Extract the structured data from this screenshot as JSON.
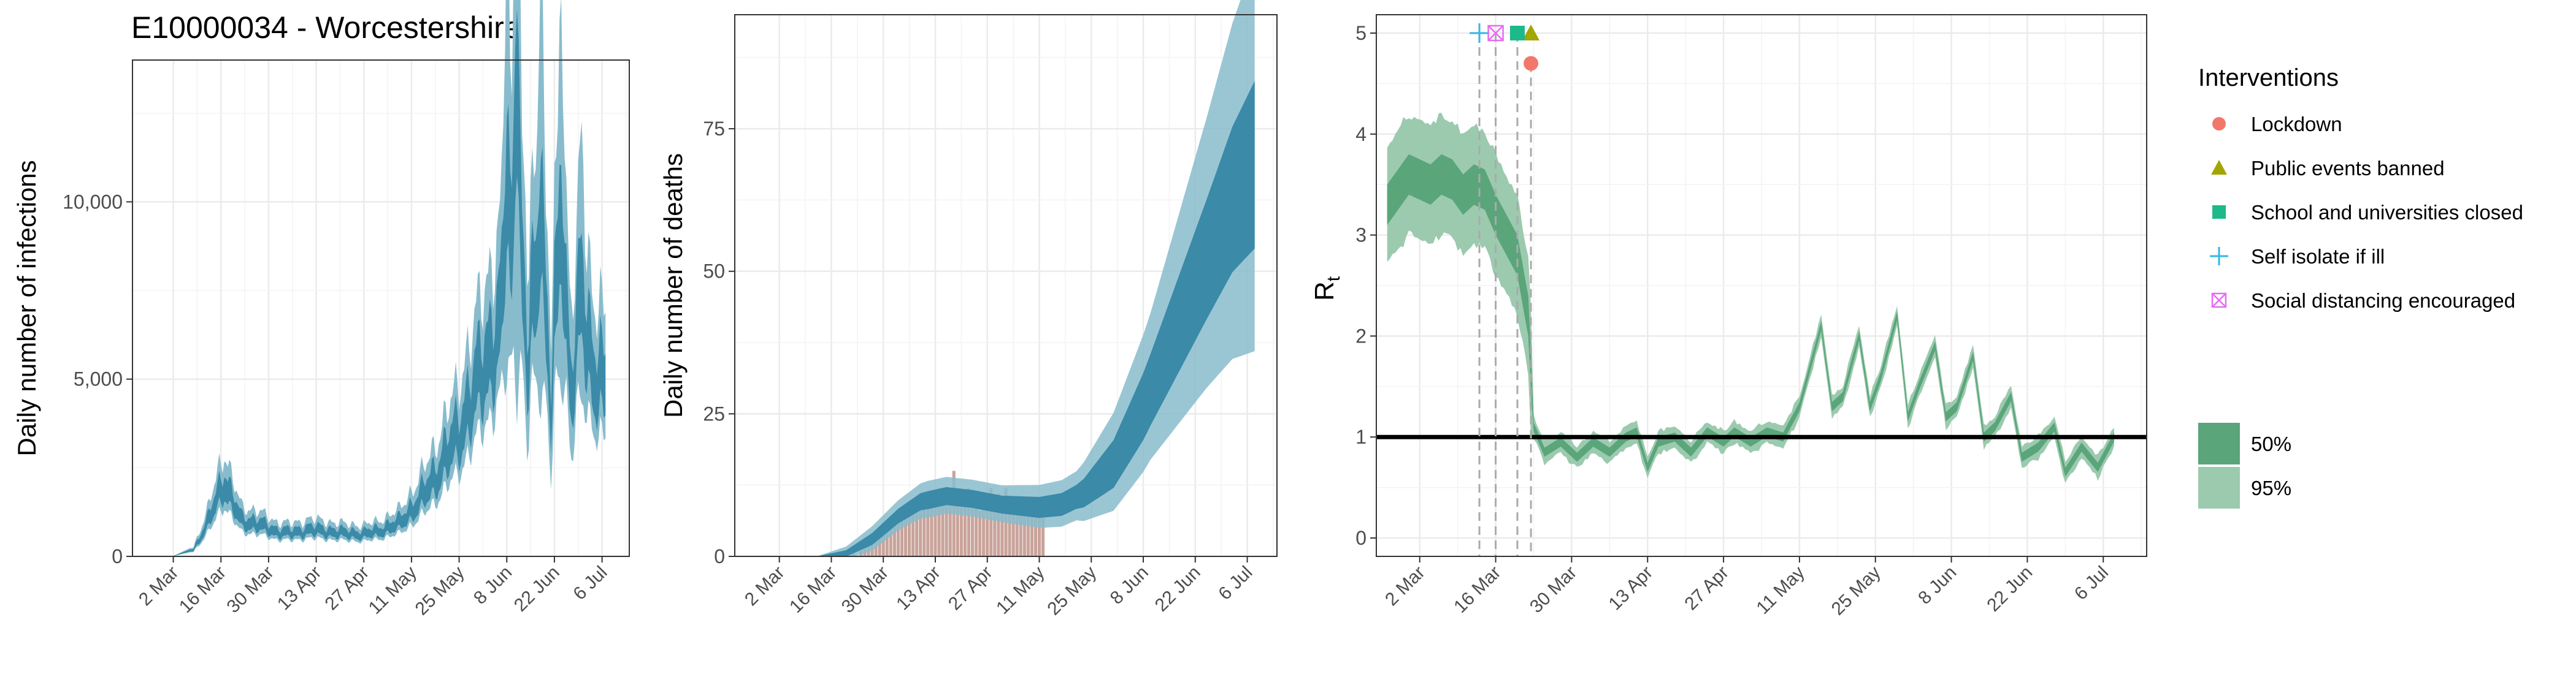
{
  "title": "E10000034 - Worcestershire",
  "colors": {
    "infections_50": "#3a8aa8",
    "infections_95": "#88bccd",
    "deaths_bar": "#c9a39a",
    "rt_50": "#5aa57a",
    "rt_95": "#9ccaaf",
    "lockdown": "#f2776b",
    "public_events": "#a3a500",
    "school": "#1cb98a",
    "self_isolate": "#35b6e6",
    "social_distancing": "#e76bf3",
    "grid": "#ebebeb"
  },
  "chart_data": [
    {
      "id": "infections",
      "type": "area",
      "ylabel": "Daily number of infections",
      "xlabel": "",
      "x_tick_labels": [
        "2 Mar",
        "16 Mar",
        "30 Mar",
        "13 Apr",
        "27 Apr",
        "11 May",
        "25 May",
        "8 Jun",
        "22 Jun",
        "6 Jul"
      ],
      "x_tick_days": [
        10,
        24,
        38,
        52,
        66,
        80,
        94,
        108,
        122,
        136
      ],
      "xlim": [
        -2,
        144
      ],
      "ylim": [
        0,
        14000
      ],
      "y_ticks": [
        0,
        5000,
        10000
      ],
      "y_tick_labels": [
        "0",
        "5,000",
        "10,000"
      ],
      "series": [
        {
          "name": "95%",
          "knots": [
            [
              0,
              0
            ],
            [
              10,
              10
            ],
            [
              16,
              200
            ],
            [
              20,
              900
            ],
            [
              23,
              1700
            ],
            [
              25,
              2100
            ],
            [
              27,
              1600
            ],
            [
              30,
              1000
            ],
            [
              35,
              900
            ],
            [
              40,
              700
            ],
            [
              45,
              650
            ],
            [
              50,
              750
            ],
            [
              55,
              700
            ],
            [
              60,
              650
            ],
            [
              66,
              620
            ],
            [
              70,
              700
            ],
            [
              76,
              900
            ],
            [
              82,
              1500
            ],
            [
              88,
              2400
            ],
            [
              94,
              3500
            ],
            [
              100,
              5000
            ],
            [
              106,
              6500
            ],
            [
              110,
              8000
            ],
            [
              114,
              7500
            ],
            [
              118,
              6500
            ],
            [
              122,
              7000
            ],
            [
              126,
              6500
            ],
            [
              130,
              6000
            ],
            [
              134,
              5200
            ],
            [
              137,
              5000
            ]
          ],
          "spread95": 0.42,
          "spread50": 0.18,
          "spikes": [
            [
              108,
              0.9
            ],
            [
              111,
              1.6
            ],
            [
              114,
              -0.5
            ],
            [
              118,
              1.1
            ],
            [
              121,
              -0.6
            ],
            [
              124,
              0.8
            ],
            [
              127,
              -0.4
            ],
            [
              130,
              0.5
            ]
          ]
        }
      ]
    },
    {
      "id": "deaths",
      "type": "area",
      "ylabel": "Daily number of deaths",
      "xlabel": "",
      "x_tick_labels": [
        "2 Mar",
        "16 Mar",
        "30 Mar",
        "13 Apr",
        "27 Apr",
        "11 May",
        "25 May",
        "8 Jun",
        "22 Jun",
        "6 Jul"
      ],
      "x_tick_days": [
        10,
        24,
        38,
        52,
        66,
        80,
        94,
        108,
        122,
        136
      ],
      "xlim": [
        -2,
        144
      ],
      "ylim": [
        0,
        95
      ],
      "y_ticks": [
        0,
        25,
        50,
        75
      ],
      "y_tick_labels": [
        "0",
        "25",
        "50",
        "75"
      ],
      "series_50_knots": [
        [
          20,
          0
        ],
        [
          28,
          0.5
        ],
        [
          35,
          3
        ],
        [
          42,
          7
        ],
        [
          48,
          9.5
        ],
        [
          55,
          10.5
        ],
        [
          62,
          10
        ],
        [
          70,
          9
        ],
        [
          80,
          8.5
        ],
        [
          86,
          9
        ],
        [
          92,
          11
        ],
        [
          100,
          16
        ],
        [
          108,
          26
        ],
        [
          116,
          38
        ],
        [
          124,
          50
        ],
        [
          132,
          62
        ],
        [
          138,
          68
        ]
      ],
      "series_50_width": [
        [
          20,
          0
        ],
        [
          35,
          1
        ],
        [
          50,
          1.5
        ],
        [
          70,
          1.5
        ],
        [
          90,
          2
        ],
        [
          110,
          6
        ],
        [
          125,
          10
        ],
        [
          138,
          14
        ]
      ],
      "series_95_width": [
        [
          20,
          0
        ],
        [
          35,
          2
        ],
        [
          50,
          3
        ],
        [
          70,
          3
        ],
        [
          90,
          4
        ],
        [
          110,
          12
        ],
        [
          125,
          22
        ],
        [
          138,
          32
        ]
      ],
      "bars_days": [
        30,
        32,
        33,
        34,
        35,
        36,
        37,
        38,
        39,
        40,
        41,
        42,
        43,
        44,
        45,
        46,
        47,
        48,
        49,
        50,
        51,
        52,
        53,
        54,
        55,
        56,
        57,
        58,
        59,
        60,
        61,
        62,
        63,
        64,
        65,
        66,
        67,
        68,
        69,
        70,
        71,
        72,
        73,
        74,
        75,
        76,
        77,
        78,
        79,
        80,
        81
      ],
      "bars_values": [
        1,
        1,
        2,
        3,
        2,
        4,
        5,
        5,
        6,
        7,
        7,
        8,
        8,
        9,
        9,
        10,
        9,
        11,
        10,
        9,
        11,
        10,
        12,
        10,
        10,
        9,
        15,
        10,
        11,
        10,
        12,
        9,
        11,
        8,
        10,
        11,
        12,
        10,
        11,
        9,
        12,
        9,
        10,
        9,
        10,
        9,
        8,
        9,
        9,
        8,
        7
      ]
    },
    {
      "id": "rt",
      "type": "area",
      "ylabel": "R",
      "ylabel_sub": "t",
      "xlabel": "",
      "x_tick_labels": [
        "2 Mar",
        "16 Mar",
        "30 Mar",
        "13 Apr",
        "27 Apr",
        "11 May",
        "25 May",
        "8 Jun",
        "22 Jun",
        "6 Jul"
      ],
      "x_tick_days": [
        10,
        24,
        38,
        52,
        66,
        80,
        94,
        108,
        122,
        136
      ],
      "xlim": [
        2,
        144
      ],
      "ylim": [
        0,
        5
      ],
      "y_ticks": [
        0,
        1,
        2,
        3,
        4,
        5
      ],
      "y_tick_labels": [
        "0",
        "1",
        "2",
        "3",
        "4",
        "5"
      ],
      "reference_line": 1,
      "knots_mean": [
        [
          4,
          3.3
        ],
        [
          6,
          3.45
        ],
        [
          8,
          3.6
        ],
        [
          10,
          3.55
        ],
        [
          12,
          3.5
        ],
        [
          14,
          3.6
        ],
        [
          16,
          3.55
        ],
        [
          18,
          3.4
        ],
        [
          20,
          3.5
        ],
        [
          22,
          3.45
        ],
        [
          24,
          3.2
        ],
        [
          26,
          3.0
        ],
        [
          28,
          2.8
        ],
        [
          30,
          2.2
        ],
        [
          31,
          1.1
        ],
        [
          33,
          0.85
        ],
        [
          36,
          0.95
        ],
        [
          39,
          0.8
        ],
        [
          42,
          0.95
        ],
        [
          45,
          0.85
        ],
        [
          48,
          1.0
        ],
        [
          50,
          1.05
        ],
        [
          52,
          0.7
        ],
        [
          54,
          0.95
        ],
        [
          57,
          1.0
        ],
        [
          60,
          0.85
        ],
        [
          63,
          1.05
        ],
        [
          66,
          0.95
        ],
        [
          68,
          1.05
        ],
        [
          71,
          0.95
        ],
        [
          74,
          1.05
        ],
        [
          77,
          1.0
        ],
        [
          80,
          1.3
        ],
        [
          82,
          1.7
        ],
        [
          84,
          2.1
        ],
        [
          86,
          1.3
        ],
        [
          88,
          1.4
        ],
        [
          91,
          2.0
        ],
        [
          93,
          1.3
        ],
        [
          95,
          1.6
        ],
        [
          98,
          2.2
        ],
        [
          100,
          1.2
        ],
        [
          102,
          1.5
        ],
        [
          105,
          1.9
        ],
        [
          107,
          1.2
        ],
        [
          109,
          1.3
        ],
        [
          112,
          1.8
        ],
        [
          114,
          1.0
        ],
        [
          116,
          1.1
        ],
        [
          119,
          1.4
        ],
        [
          121,
          0.8
        ],
        [
          124,
          0.9
        ],
        [
          127,
          1.1
        ],
        [
          129,
          0.65
        ],
        [
          132,
          0.9
        ],
        [
          135,
          0.7
        ],
        [
          138,
          1.0
        ]
      ],
      "interventions": [
        {
          "name": "Lockdown",
          "day": 30.5,
          "marker_y": 4.7,
          "shape": "circle",
          "color_key": "lockdown"
        },
        {
          "name": "Public events banned",
          "day": 30.5,
          "marker_y": 5.0,
          "shape": "triangle",
          "color_key": "public_events"
        },
        {
          "name": "School and universities closed",
          "day": 28,
          "marker_y": 5.0,
          "shape": "square",
          "color_key": "school"
        },
        {
          "name": "Self isolate if ill",
          "day": 21,
          "marker_y": 5.0,
          "shape": "plus",
          "color_key": "self_isolate"
        },
        {
          "name": "Social distancing encouraged",
          "day": 24,
          "marker_y": 5.0,
          "shape": "boxcross",
          "color_key": "social_distancing"
        }
      ]
    }
  ],
  "legend": {
    "interventions_title": "Interventions",
    "interventions_items": [
      "Lockdown",
      "Public events banned",
      "School and universities closed",
      "Self isolate if ill",
      "Social distancing encouraged"
    ],
    "bands": [
      "50%",
      "95%"
    ]
  }
}
